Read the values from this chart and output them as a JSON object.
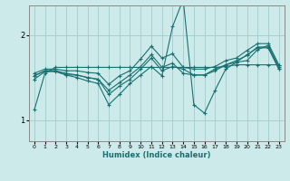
{
  "xlabel": "Humidex (Indice chaleur)",
  "bg_color": "#cceaea",
  "grid_color": "#aacece",
  "line_color": "#1a7070",
  "xlim": [
    -0.5,
    23.5
  ],
  "ylim": [
    0.75,
    2.35
  ],
  "yticks": [
    1,
    2
  ],
  "xticks": [
    0,
    1,
    2,
    3,
    4,
    5,
    6,
    7,
    8,
    9,
    10,
    11,
    12,
    13,
    14,
    15,
    16,
    17,
    18,
    19,
    20,
    21,
    22,
    23
  ],
  "series": [
    [
      1.12,
      1.55,
      1.62,
      1.62,
      1.62,
      1.62,
      1.62,
      1.62,
      1.62,
      1.62,
      1.62,
      1.62,
      1.62,
      1.62,
      1.62,
      1.62,
      1.62,
      1.62,
      1.63,
      1.65,
      1.65,
      1.65,
      1.65,
      1.65
    ],
    [
      1.55,
      1.6,
      1.6,
      1.58,
      1.58,
      1.56,
      1.55,
      1.42,
      1.52,
      1.58,
      1.72,
      1.87,
      1.73,
      1.78,
      1.62,
      1.6,
      1.6,
      1.63,
      1.7,
      1.73,
      1.82,
      1.9,
      1.9,
      1.65
    ],
    [
      1.52,
      1.58,
      1.58,
      1.55,
      1.53,
      1.5,
      1.48,
      1.35,
      1.44,
      1.53,
      1.63,
      1.77,
      1.62,
      1.67,
      1.55,
      1.53,
      1.53,
      1.58,
      1.65,
      1.68,
      1.77,
      1.85,
      1.85,
      1.6
    ],
    [
      1.48,
      1.57,
      1.57,
      1.53,
      1.5,
      1.46,
      1.43,
      1.18,
      1.3,
      1.43,
      1.53,
      1.63,
      1.52,
      2.1,
      2.42,
      1.18,
      1.08,
      1.35,
      1.6,
      1.68,
      1.7,
      1.83,
      1.88,
      1.63
    ],
    [
      1.52,
      1.58,
      1.58,
      1.53,
      1.53,
      1.5,
      1.48,
      1.3,
      1.4,
      1.48,
      1.6,
      1.73,
      1.58,
      1.63,
      1.6,
      1.53,
      1.53,
      1.6,
      1.65,
      1.7,
      1.76,
      1.86,
      1.86,
      1.6
    ]
  ]
}
